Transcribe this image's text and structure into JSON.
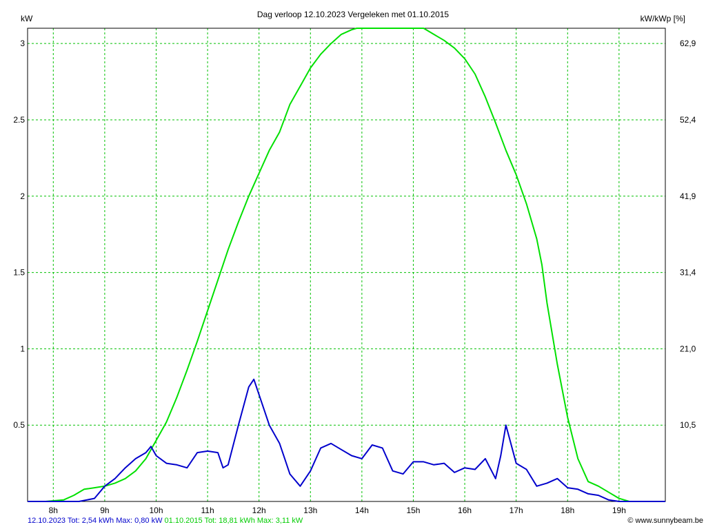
{
  "chart_data": {
    "type": "line",
    "title": "Dag  verloop 12.10.2023   Vergeleken met 01.10.2015",
    "y_left_label": "kW",
    "y_right_label": "kW/kWp [%]",
    "x_ticks": [
      "8h",
      "9h",
      "10h",
      "11h",
      "12h",
      "13h",
      "14h",
      "15h",
      "16h",
      "17h",
      "18h",
      "19h"
    ],
    "x_range": [
      7.5,
      19.9
    ],
    "y_ticks_left": [
      "0.5",
      "1",
      "1.5",
      "2",
      "2.5",
      "3"
    ],
    "y_ticks_right": [
      "10,5",
      "21,0",
      "31,4",
      "41,9",
      "52,4",
      "62,9"
    ],
    "ylim": [
      0,
      3.1
    ],
    "grid": true,
    "series": [
      {
        "color": "#00e000",
        "x": [
          7.5,
          7.85,
          8.2,
          8.4,
          8.6,
          8.8,
          9.0,
          9.2,
          9.4,
          9.6,
          9.8,
          10.0,
          10.2,
          10.4,
          10.6,
          10.8,
          11.0,
          11.2,
          11.4,
          11.6,
          11.8,
          12.0,
          12.2,
          12.4,
          12.6,
          12.8,
          13.0,
          13.2,
          13.4,
          13.6,
          13.8,
          13.9,
          14.0,
          14.2,
          14.4,
          14.6,
          14.8,
          15.0,
          15.2,
          15.4,
          15.6,
          15.8,
          16.0,
          16.2,
          16.4,
          16.6,
          16.8,
          17.0,
          17.2,
          17.4,
          17.5,
          17.6,
          17.8,
          18.0,
          18.2,
          18.4,
          18.6,
          18.8,
          18.9,
          19.0,
          19.2,
          19.5,
          19.9
        ],
        "y": [
          0.0,
          0.0,
          0.01,
          0.04,
          0.08,
          0.09,
          0.1,
          0.12,
          0.15,
          0.2,
          0.28,
          0.4,
          0.52,
          0.68,
          0.86,
          1.05,
          1.25,
          1.45,
          1.65,
          1.83,
          2.0,
          2.15,
          2.3,
          2.42,
          2.6,
          2.72,
          2.84,
          2.93,
          3.0,
          3.06,
          3.09,
          3.1,
          3.1,
          3.12,
          3.14,
          3.14,
          3.14,
          3.13,
          3.1,
          3.06,
          3.02,
          2.97,
          2.9,
          2.8,
          2.65,
          2.48,
          2.3,
          2.14,
          1.95,
          1.72,
          1.55,
          1.3,
          0.9,
          0.55,
          0.28,
          0.13,
          0.1,
          0.06,
          0.04,
          0.02,
          0.0,
          0.0,
          0.0
        ],
        "legend_text": "01.10.2015 Tot: 18,81 kWh Max: 3,11 kW"
      },
      {
        "color": "#0000cc",
        "x": [
          7.5,
          8.2,
          8.5,
          8.8,
          9.0,
          9.2,
          9.4,
          9.6,
          9.8,
          9.9,
          10.0,
          10.2,
          10.4,
          10.6,
          10.8,
          11.0,
          11.2,
          11.3,
          11.4,
          11.6,
          11.8,
          11.9,
          12.0,
          12.2,
          12.4,
          12.5,
          12.6,
          12.8,
          13.0,
          13.2,
          13.4,
          13.6,
          13.8,
          14.0,
          14.2,
          14.4,
          14.6,
          14.8,
          15.0,
          15.2,
          15.4,
          15.6,
          15.8,
          16.0,
          16.2,
          16.4,
          16.6,
          16.7,
          16.8,
          17.0,
          17.2,
          17.4,
          17.6,
          17.8,
          18.0,
          18.2,
          18.4,
          18.6,
          18.8,
          19.0,
          19.2,
          19.5,
          19.9
        ],
        "y": [
          0.0,
          0.0,
          0.0,
          0.02,
          0.1,
          0.15,
          0.22,
          0.28,
          0.32,
          0.36,
          0.3,
          0.25,
          0.24,
          0.22,
          0.32,
          0.33,
          0.32,
          0.22,
          0.24,
          0.5,
          0.75,
          0.8,
          0.7,
          0.5,
          0.38,
          0.28,
          0.18,
          0.1,
          0.2,
          0.35,
          0.38,
          0.34,
          0.3,
          0.28,
          0.37,
          0.35,
          0.2,
          0.18,
          0.26,
          0.26,
          0.24,
          0.25,
          0.19,
          0.22,
          0.21,
          0.28,
          0.15,
          0.3,
          0.5,
          0.25,
          0.21,
          0.1,
          0.12,
          0.15,
          0.09,
          0.08,
          0.05,
          0.04,
          0.01,
          0.0,
          0.0,
          0.0,
          0.0
        ],
        "legend_text": "12.10.2023 Tot: 2,54 kWh Max: 0,80 kW"
      }
    ]
  },
  "footer": {
    "left_blue": "12.10.2023 Tot: 2,54 kWh Max: 0,80 kW",
    "left_green": "01.10.2015 Tot: 18,81 kWh Max: 3,11 kW",
    "credit": "© www.sunnybeam.be"
  }
}
